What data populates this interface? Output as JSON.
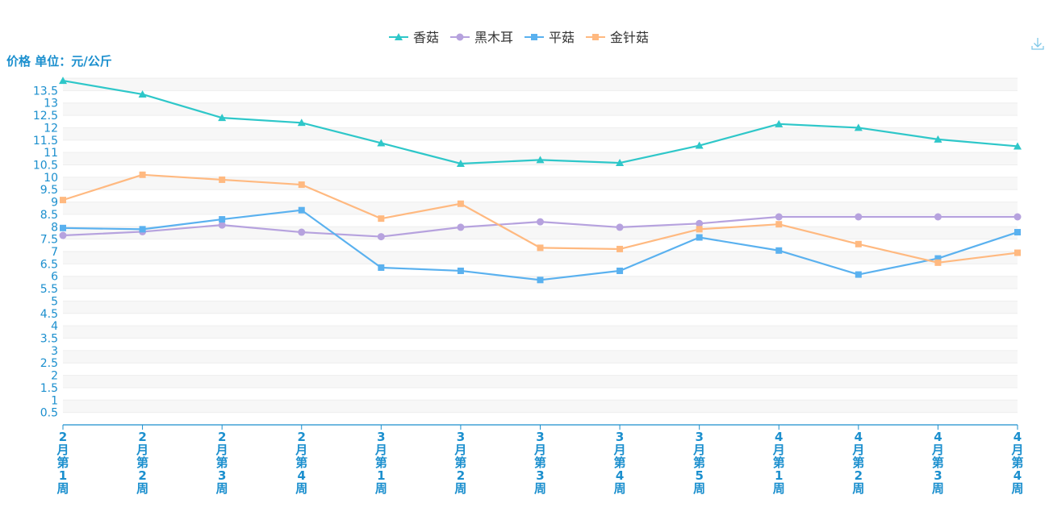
{
  "chart_data": {
    "type": "line",
    "ylabel": "价格 单位：元/公斤",
    "ylim": [
      0,
      14
    ],
    "yticks": [
      "0.5",
      "1",
      "1.5",
      "2",
      "2.5",
      "3",
      "3.5",
      "4",
      "4.5",
      "5",
      "5.5",
      "6",
      "6.5",
      "7",
      "7.5",
      "8",
      "8.5",
      "9",
      "9.5",
      "10",
      "10.5",
      "11",
      "11.5",
      "12",
      "12.5",
      "13",
      "13.5"
    ],
    "categories": [
      "2月第1周",
      "2月第2周",
      "2月第3周",
      "2月第4周",
      "3月第1周",
      "3月第2周",
      "3月第3周",
      "3月第4周",
      "3月第5周",
      "4月第1周",
      "4月第2周",
      "4月第3周",
      "4月第4周"
    ],
    "legend_position": "top-center",
    "grid": true,
    "series": [
      {
        "name": "香菇",
        "color": "#2ec7c9",
        "marker": "triangle",
        "values": [
          13.9,
          13.35,
          12.4,
          12.2,
          11.38,
          10.55,
          10.7,
          10.58,
          11.28,
          12.15,
          12.0,
          11.53,
          11.25
        ]
      },
      {
        "name": "黑木耳",
        "color": "#b6a2de",
        "marker": "circle",
        "values": [
          7.65,
          7.8,
          8.07,
          7.78,
          7.6,
          7.98,
          8.2,
          7.98,
          8.13,
          8.4,
          8.4,
          8.4,
          8.4
        ]
      },
      {
        "name": "平菇",
        "color": "#5ab1ef",
        "marker": "square",
        "values": [
          7.95,
          7.9,
          8.3,
          8.67,
          6.35,
          6.22,
          5.85,
          6.22,
          7.57,
          7.04,
          6.07,
          6.72,
          7.78
        ]
      },
      {
        "name": "金针菇",
        "color": "#ffb980",
        "marker": "square",
        "values": [
          9.08,
          10.1,
          9.9,
          9.7,
          8.33,
          8.93,
          7.15,
          7.1,
          7.9,
          8.1,
          7.3,
          6.55,
          6.95
        ]
      }
    ]
  },
  "toolbar": {
    "download_icon": "download-icon"
  }
}
